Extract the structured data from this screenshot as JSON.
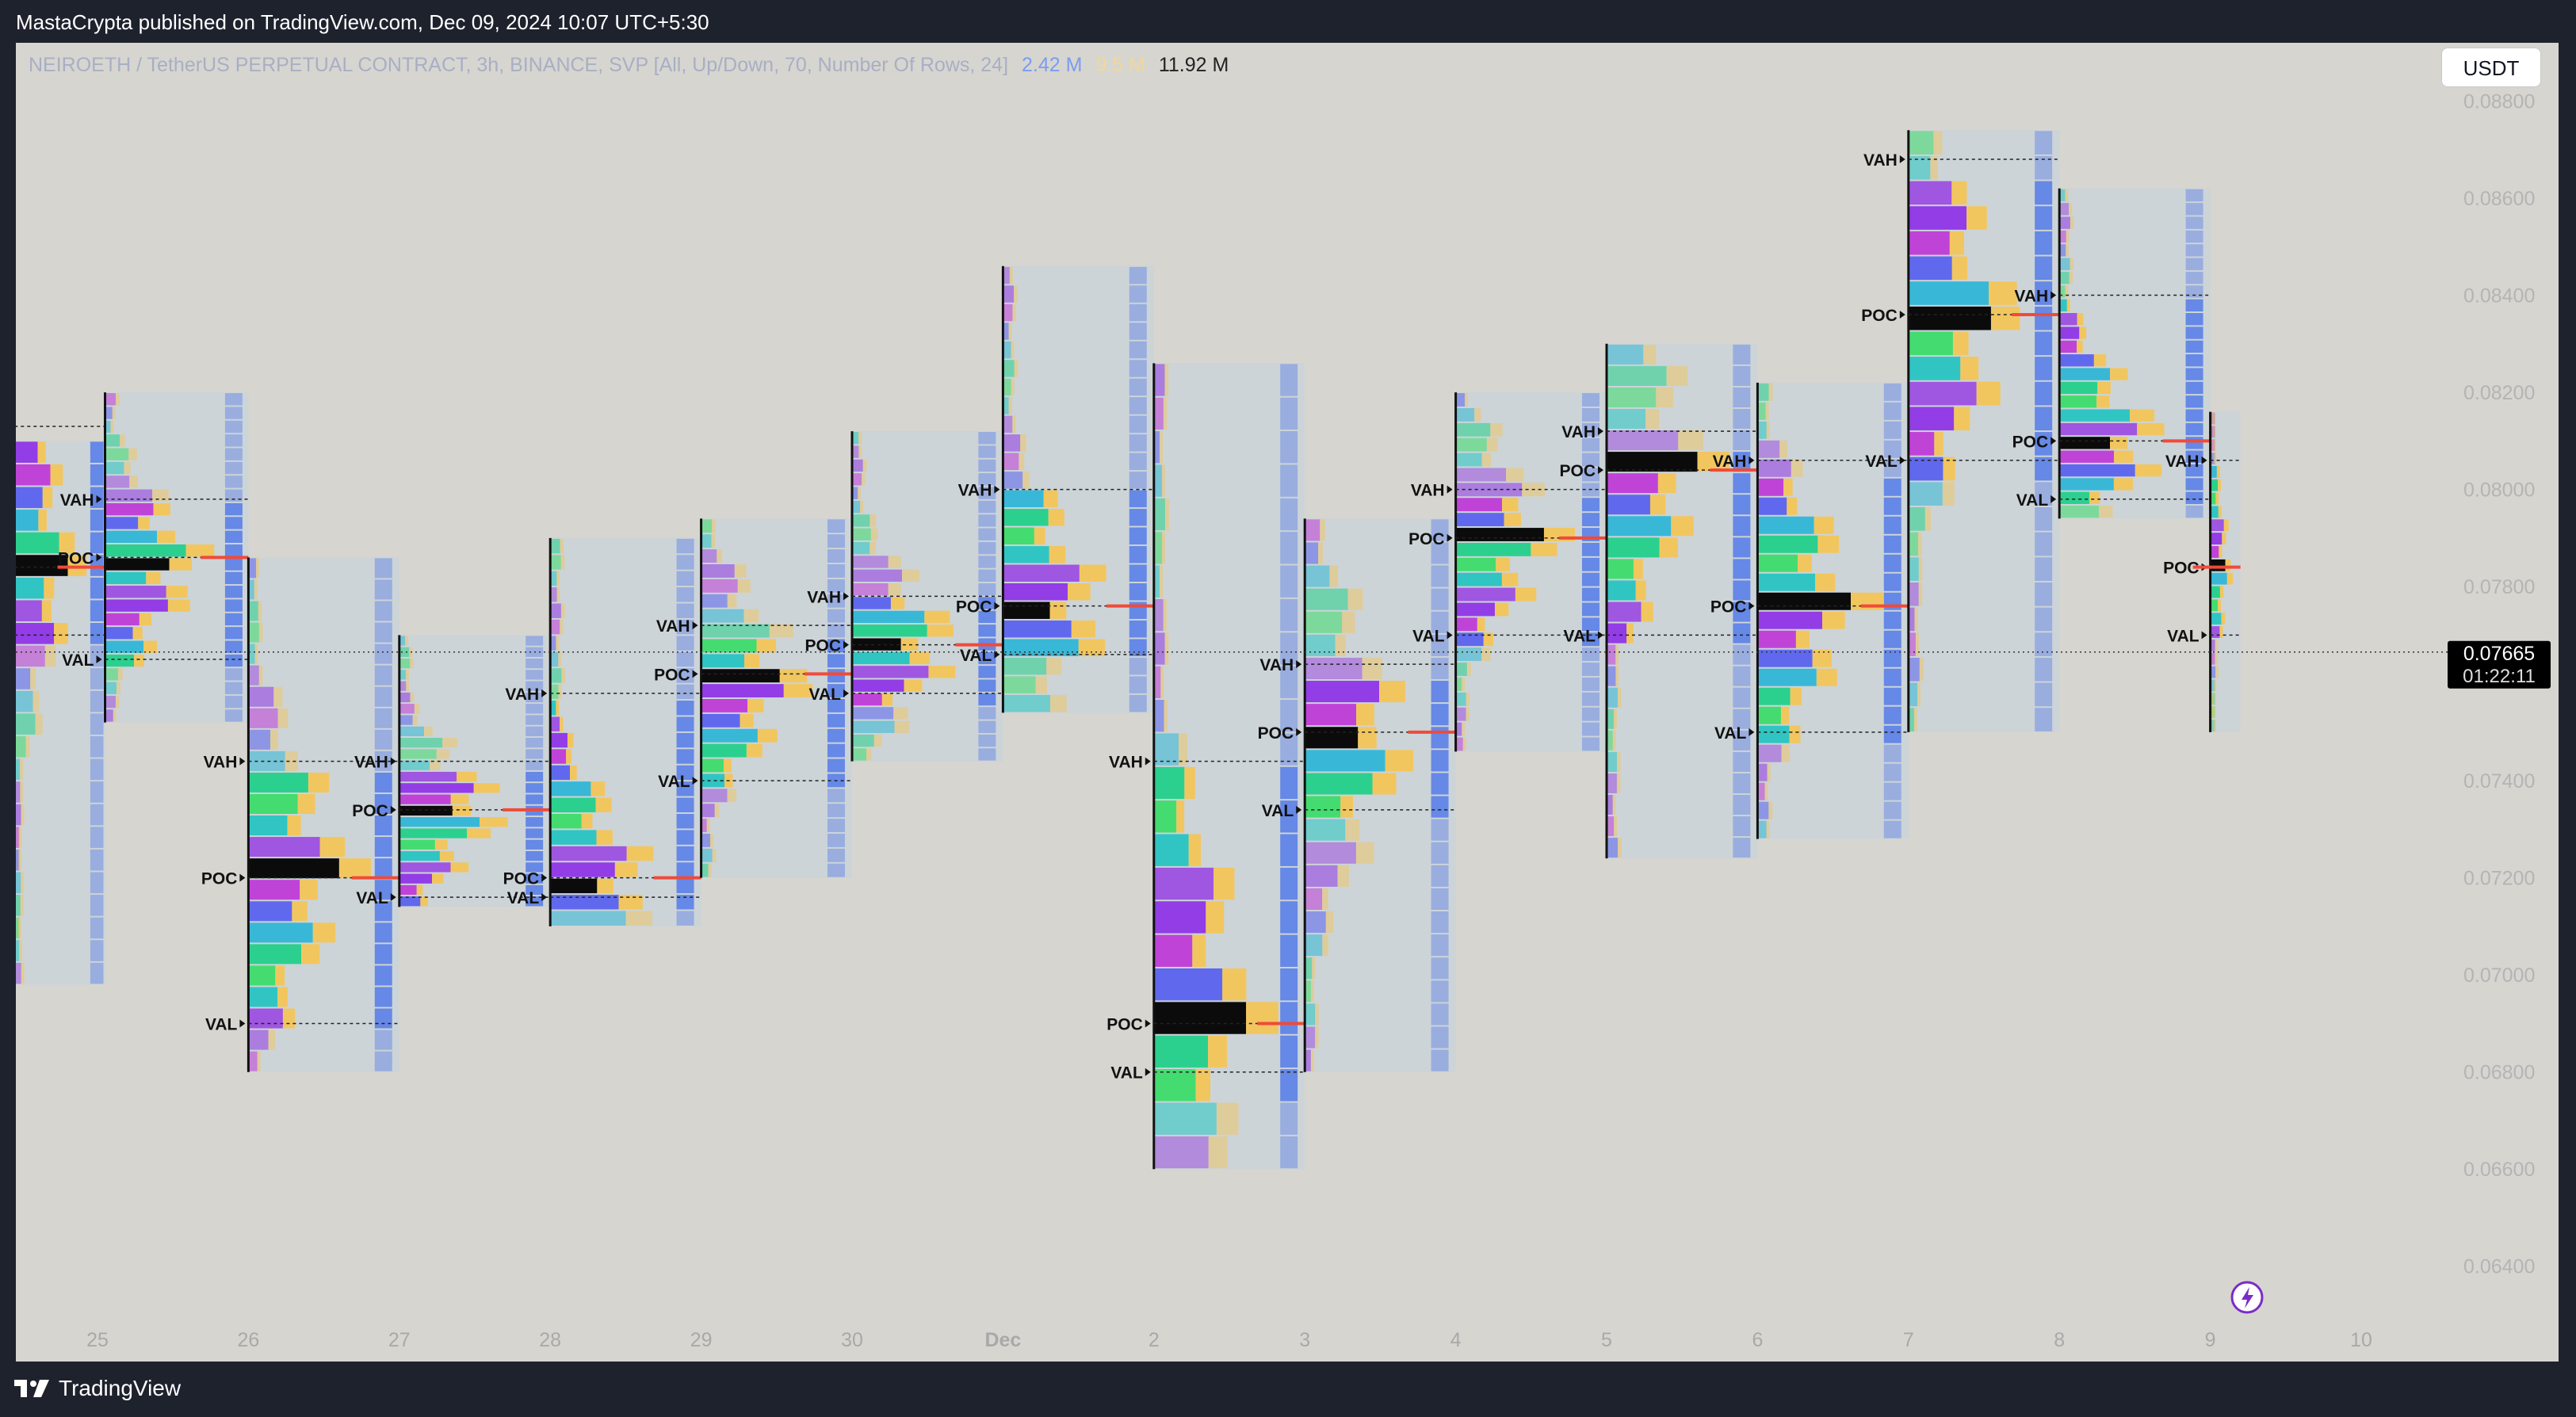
{
  "header": {
    "published": "MastaCrypta published on TradingView.com, Dec 09, 2024 10:07 UTC+5:30"
  },
  "legend": {
    "symbol": "NEIROETH / TetherUS PERPETUAL CONTRACT, 3h, BINANCE, SVP [All, Up/Down, 70, Number Of Rows, 24]",
    "value1": "2.42 M",
    "value2": "9.5 M",
    "value3": "11.92 M"
  },
  "currency_button": "USDT",
  "footer": {
    "brand": "TradingView"
  },
  "colors": {
    "background": "#d6d5d0",
    "frame": "#1e222d",
    "up_volume": "#f6c452",
    "down_volume": "#5b7fe8",
    "poc_bar": "#000000",
    "poc_line": "#ef4b3a",
    "value_area_box": "#c5d3de"
  },
  "chart_data": {
    "type": "volume_profile",
    "title": "",
    "xlabel": "",
    "ylabel": "",
    "x_ticks": [
      "25",
      "26",
      "27",
      "28",
      "29",
      "30",
      "Dec",
      "2",
      "3",
      "4",
      "5",
      "6",
      "7",
      "8",
      "9",
      "10"
    ],
    "y_ticks": [
      "0.08800",
      "0.08600",
      "0.08400",
      "0.08200",
      "0.08000",
      "0.07800",
      "0.07400",
      "0.07200",
      "0.07000",
      "0.06800",
      "0.06600",
      "0.06400"
    ],
    "ylim": [
      0.063,
      0.0892
    ],
    "last_price": {
      "value": "0.07665",
      "countdown": "01:22:11"
    },
    "level_labels": {
      "vah": "VAH",
      "poc": "POC",
      "val": "VAL"
    },
    "profiles": [
      {
        "start": 24.45,
        "end": 25.05,
        "high": 0.081,
        "low": 0.0698,
        "vah": 0.0813,
        "poc": 0.0784,
        "val": 0.077
      },
      {
        "start": 25.05,
        "end": 26.0,
        "high": 0.082,
        "low": 0.0752,
        "vah": 0.0798,
        "poc": 0.0786,
        "val": 0.0765
      },
      {
        "start": 26.0,
        "end": 27.0,
        "high": 0.0786,
        "low": 0.068,
        "vah": 0.0744,
        "poc": 0.072,
        "val": 0.069
      },
      {
        "start": 27.0,
        "end": 28.0,
        "high": 0.077,
        "low": 0.0714,
        "vah": 0.0744,
        "poc": 0.0734,
        "val": 0.0716
      },
      {
        "start": 28.0,
        "end": 29.0,
        "high": 0.079,
        "low": 0.071,
        "vah": 0.0758,
        "poc": 0.072,
        "val": 0.0716
      },
      {
        "start": 29.0,
        "end": 30.0,
        "high": 0.0794,
        "low": 0.072,
        "vah": 0.0772,
        "poc": 0.0762,
        "val": 0.074
      },
      {
        "start": 30.0,
        "end": 31.0,
        "high": 0.0812,
        "low": 0.0744,
        "vah": 0.0778,
        "poc": 0.0768,
        "val": 0.0758
      },
      {
        "start": 31.0,
        "end": 32.0,
        "high": 0.0846,
        "low": 0.0754,
        "vah": 0.08,
        "poc": 0.0776,
        "val": 0.0766
      },
      {
        "start": 32.0,
        "end": 33.0,
        "high": 0.0826,
        "low": 0.066,
        "vah": 0.0744,
        "poc": 0.069,
        "val": 0.068
      },
      {
        "start": 33.0,
        "end": 34.0,
        "high": 0.0794,
        "low": 0.068,
        "vah": 0.0764,
        "poc": 0.075,
        "val": 0.0734
      },
      {
        "start": 34.0,
        "end": 35.0,
        "high": 0.082,
        "low": 0.0746,
        "vah": 0.08,
        "poc": 0.079,
        "val": 0.077
      },
      {
        "start": 35.0,
        "end": 36.0,
        "high": 0.083,
        "low": 0.0724,
        "vah": 0.0812,
        "poc": 0.0804,
        "val": 0.077
      },
      {
        "start": 36.0,
        "end": 37.0,
        "high": 0.0822,
        "low": 0.0728,
        "vah": 0.0806,
        "poc": 0.0776,
        "val": 0.075
      },
      {
        "start": 37.0,
        "end": 38.0,
        "high": 0.0874,
        "low": 0.075,
        "vah": 0.0868,
        "poc": 0.0836,
        "val": 0.0806
      },
      {
        "start": 38.0,
        "end": 39.0,
        "high": 0.0862,
        "low": 0.0794,
        "vah": 0.084,
        "poc": 0.081,
        "val": 0.0798
      },
      {
        "start": 39.0,
        "end": 39.2,
        "high": 0.0816,
        "low": 0.075,
        "vah": 0.0806,
        "poc": 0.0784,
        "val": 0.077
      }
    ]
  }
}
